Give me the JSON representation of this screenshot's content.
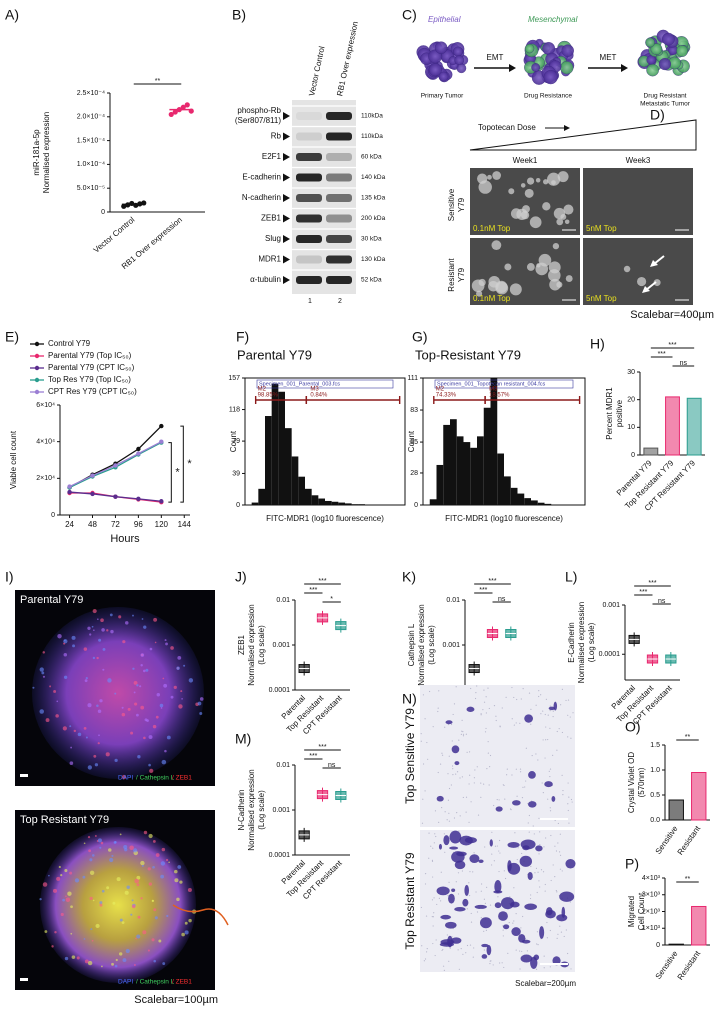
{
  "chart_data": [
    {
      "type": "dot",
      "panel_label": "A)",
      "ylabel": [
        "miR-181a-5p",
        "Normalised expression"
      ],
      "categories": [
        "Vector Control",
        "RB1 Over expression"
      ],
      "values": [
        1.6e-05,
        0.000215
      ],
      "points": [
        [
          1.2e-05,
          1.5e-05,
          1.8e-05,
          1.4e-05,
          1.7e-05,
          1.9e-05
        ],
        [
          0.000205,
          0.00021,
          0.000215,
          0.00022,
          0.000225,
          0.000212
        ]
      ],
      "colors": [
        "#111111",
        "#e8286e"
      ],
      "ylim": [
        0,
        0.00025
      ],
      "yticks": [
        0,
        {
          "value": 5e-05,
          "label": "5.0×10⁻⁵"
        },
        {
          "value": 0.0001,
          "label": "1.0×10⁻⁴"
        },
        {
          "value": 0.00015,
          "label": "1.5×10⁻⁴"
        },
        {
          "value": 0.0002,
          "label": "2.0×10⁻⁴"
        },
        {
          "value": 0.00025,
          "label": "2.5×10⁻⁴"
        }
      ],
      "annotations": [
        "**"
      ]
    },
    {
      "type": "line",
      "panel_label": "E)",
      "xlabel": "Hours",
      "ylabel": [
        "Viable cell count"
      ],
      "x": [
        24,
        48,
        72,
        96,
        120
      ],
      "series": [
        {
          "name": "Control Y79",
          "color": "#111111",
          "values": [
            15000,
            22000,
            28000,
            36000,
            48500
          ]
        },
        {
          "name": "Parental Y79 (Top IC₅₀)",
          "color": "#e8286e",
          "values": [
            12000,
            12000,
            10000,
            8500,
            7000
          ]
        },
        {
          "name": "Parental Y79 (CPT IC₅₀)",
          "color": "#5b2d8e",
          "values": [
            12500,
            11500,
            10000,
            8800,
            7500
          ]
        },
        {
          "name": "Top Res Y79 (Top IC₅₀)",
          "color": "#2a9d8f",
          "values": [
            15000,
            21000,
            26000,
            33000,
            39500
          ]
        },
        {
          "name": "CPT Res Y79 (CPT IC₅₀)",
          "color": "#9b7fd4",
          "values": [
            15500,
            21500,
            27000,
            33500,
            40000
          ]
        }
      ],
      "xlim": [
        14,
        150
      ],
      "xticks": [
        24,
        48,
        72,
        96,
        120,
        144
      ],
      "ylim": [
        0,
        60000
      ],
      "yticks": [
        0,
        {
          "value": 20000,
          "label": "2×10⁴"
        },
        {
          "value": 40000,
          "label": "4×10⁴"
        },
        {
          "value": 60000,
          "label": "6×10⁴"
        }
      ],
      "annotations": [
        "*",
        "*"
      ]
    },
    {
      "type": "histogram",
      "panel_label": "F)",
      "title": "Parental Y79",
      "specimen": "Specimen_001_Parental_003.fcs",
      "xlabel": "FITC-MDR1 (log10 fluorescence)",
      "ylabel": [
        "Count"
      ],
      "bins": [
        -1,
        -0.75,
        -0.5,
        -0.25,
        0,
        0.25,
        0.5,
        0.75,
        1,
        1.25,
        1.5,
        1.75,
        2,
        2.25,
        2.5,
        2.75,
        3,
        3.25,
        3.5,
        3.75,
        4,
        4.25,
        4.5,
        4.75,
        5
      ],
      "counts": [
        0,
        3,
        20,
        110,
        150,
        140,
        95,
        60,
        35,
        20,
        12,
        8,
        5,
        4,
        3,
        2,
        1,
        1,
        0,
        0,
        0,
        0,
        0,
        0
      ],
      "xlim": [
        -1,
        5
      ],
      "ylim": [
        0,
        157
      ],
      "yticks": [
        0,
        39,
        79,
        118,
        157
      ],
      "color": "#111111",
      "gate_names": [
        "M2",
        "M3"
      ],
      "gate_values": [
        98.85,
        0.84
      ],
      "gate_value_labels": [
        "98.85%",
        "0.84%"
      ]
    },
    {
      "type": "histogram",
      "panel_label": "G)",
      "title": "Top-Resistant Y79",
      "specimen": "Specimen_001_Topotecan resistant_004.fcs",
      "xlabel": "FITC-MDR1 (log10 fluorescence)",
      "ylabel": [
        "Count"
      ],
      "bins": [
        -1,
        -0.75,
        -0.5,
        -0.25,
        0,
        0.25,
        0.5,
        0.75,
        1,
        1.25,
        1.5,
        1.75,
        2,
        2.25,
        2.5,
        2.75,
        3,
        3.25,
        3.5,
        3.75,
        4,
        4.25,
        4.5,
        4.75,
        5
      ],
      "counts": [
        0,
        5,
        35,
        70,
        75,
        60,
        55,
        50,
        60,
        85,
        111,
        45,
        25,
        15,
        10,
        6,
        4,
        2,
        1,
        0,
        0,
        0,
        0,
        0
      ],
      "xlim": [
        -1,
        5
      ],
      "ylim": [
        0,
        111
      ],
      "yticks": [
        0,
        28,
        55,
        83,
        111
      ],
      "color": "#111111",
      "gate_names": [
        "M2",
        "M3"
      ],
      "gate_values": [
        74.33,
        18.57
      ],
      "gate_value_labels": [
        "74.33%",
        "18.57%"
      ]
    },
    {
      "type": "bar",
      "panel_label": "H)",
      "ylabel": [
        "Percent MDR1",
        "positive"
      ],
      "categories": [
        "Parental Y79",
        "Top Resistant Y79",
        "CPT Resistant Y79"
      ],
      "values": [
        2.5,
        21,
        20.5
      ],
      "colors": [
        "#555555",
        "#e8286e",
        "#2a9d8f"
      ],
      "ylim": [
        0,
        30
      ],
      "yticks": [
        0,
        10,
        20,
        30
      ],
      "annotations": [
        "***",
        "***",
        "ns"
      ]
    },
    {
      "type": "box",
      "panel_label": "J)",
      "ylabel": [
        "ZEB1",
        "Normalised expression",
        "(Log scale)"
      ],
      "log": true,
      "categories": [
        "Parental",
        "Top Resistant",
        "CPT Resistant"
      ],
      "values": [
        0.0003,
        0.004,
        0.0027
      ],
      "colors": [
        "#111111",
        "#e8286e",
        "#2a9d8f"
      ],
      "ylim": [
        0.0001,
        0.01
      ],
      "yticks": [
        0.0001,
        0.001,
        0.01
      ],
      "annotations": [
        "***",
        "***",
        "*"
      ]
    },
    {
      "type": "box",
      "panel_label": "K)",
      "ylabel": [
        "Cathepsin  L",
        "Normalised expression",
        "(Log scale)"
      ],
      "log": true,
      "categories": [
        "Parental",
        "Top Resistant",
        "CPT Resistant"
      ],
      "values": [
        0.0003,
        0.0018,
        0.0018
      ],
      "colors": [
        "#111111",
        "#e8286e",
        "#2a9d8f"
      ],
      "ylim": [
        0.0001,
        0.01
      ],
      "yticks": [
        0.0001,
        0.001,
        0.01
      ],
      "annotations": [
        "***",
        "***",
        "ns"
      ]
    },
    {
      "type": "box",
      "panel_label": "L)",
      "ylabel": [
        "E-Cadherin",
        "Normalised expression",
        "(Log scale)"
      ],
      "log": true,
      "categories": [
        "Parental",
        "Top Resistant",
        "CPT Resistant"
      ],
      "values": [
        0.0002,
        8e-05,
        8e-05
      ],
      "colors": [
        "#111111",
        "#e8286e",
        "#2a9d8f"
      ],
      "ylim": [
        3e-05,
        0.001
      ],
      "yticks": [
        0.0001,
        0.001
      ],
      "annotations": [
        "***",
        "***",
        "ns"
      ]
    },
    {
      "type": "box",
      "panel_label": "M)",
      "ylabel": [
        "N-Cadherin",
        "Normalised expression",
        "(Log scale)"
      ],
      "log": true,
      "categories": [
        "Parental",
        "Top Resistant",
        "CPT Resistant"
      ],
      "values": [
        0.00028,
        0.0022,
        0.0021
      ],
      "colors": [
        "#111111",
        "#e8286e",
        "#2a9d8f"
      ],
      "ylim": [
        0.0001,
        0.01
      ],
      "yticks": [
        0.0001,
        0.001,
        0.01
      ],
      "annotations": [
        "***",
        "***",
        "ns"
      ]
    },
    {
      "type": "bar",
      "panel_label": "O)",
      "ylabel": [
        "Crystal Violet OD",
        "(570nm)"
      ],
      "categories": [
        "Sensitive",
        "Resistant"
      ],
      "values": [
        0.4,
        0.95
      ],
      "colors": [
        "#111111",
        "#e8286e"
      ],
      "ylim": [
        0,
        1.5
      ],
      "yticks": [
        {
          "value": 0,
          "label": "0.0"
        },
        {
          "value": 0.5,
          "label": "0.5"
        },
        {
          "value": 1,
          "label": "1.0"
        },
        {
          "value": 1.5,
          "label": "1.5"
        }
      ],
      "annotations": [
        "**"
      ]
    },
    {
      "type": "bar",
      "panel_label": "P)",
      "ylabel": [
        "Migrated",
        "Cell Count"
      ],
      "categories": [
        "Sensitive",
        "Resistant"
      ],
      "values": [
        50,
        2300
      ],
      "colors": [
        "#111111",
        "#e8286e"
      ],
      "ylim": [
        0,
        4000
      ],
      "yticks": [
        0,
        {
          "value": 1000,
          "label": "1×10³"
        },
        {
          "value": 2000,
          "label": "2×10³"
        },
        {
          "value": 3000,
          "label": "3×10³"
        },
        {
          "value": 4000,
          "label": "4×10³"
        }
      ],
      "annotations": [
        "**"
      ]
    }
  ],
  "blot": {
    "panel_label": "B)",
    "columns": [
      "Vector Control",
      "RB1 Over expression"
    ],
    "lanes": [
      "1",
      "2"
    ],
    "rows": [
      {
        "protein": [
          "phospho-Rb",
          "(Ser807/811)"
        ],
        "size": "110kDa"
      },
      {
        "protein": [
          "Rb"
        ],
        "size": "110kDa"
      },
      {
        "protein": [
          "E2F1"
        ],
        "size": "60 kDa"
      },
      {
        "protein": [
          "E-cadherin"
        ],
        "size": "140 kDa"
      },
      {
        "protein": [
          "N-cadherin"
        ],
        "size": "135 kDa"
      },
      {
        "protein": [
          "ZEB1"
        ],
        "size": "200 kDa"
      },
      {
        "protein": [
          "Slug"
        ],
        "size": "30 kDa"
      },
      {
        "protein": [
          "MDR1"
        ],
        "size": "130 kDa"
      },
      {
        "protein": [
          "α-tubulin"
        ],
        "size": "52 kDa"
      }
    ]
  },
  "diagram": {
    "panel_label": "C)",
    "stages": [
      {
        "title": "Epithelial",
        "caption": [
          "Primary Tumor"
        ]
      },
      {
        "title": "Mesenchymal",
        "caption": [
          "Drug Resistance"
        ]
      },
      {
        "caption": [
          "Drug Resistant",
          "Metastatic Tumor"
        ]
      }
    ],
    "arrows": [
      "EMT",
      "MET"
    ]
  },
  "micrographs": {
    "panel_label": "D)",
    "dose_label": "Topotecan Dose",
    "columns": [
      "Week1",
      "Week3"
    ],
    "rows": [
      [
        "Sensitive",
        "Y79"
      ],
      [
        "Resistant",
        "Y79"
      ]
    ],
    "doses": [
      [
        "0.1nM Top",
        "5nM Top"
      ],
      [
        "0.1nM Top",
        "5nM Top"
      ]
    ],
    "scalebar": "Scalebar=400µm"
  },
  "spheroids": {
    "panel_label": "I)",
    "images": [
      "Parental Y79",
      "Top Resistant Y79"
    ],
    "stain": [
      "DAPI",
      "/ Cathepsin L",
      "/ ZEB1"
    ],
    "scalebar": "Scalebar=100µm"
  },
  "migration": {
    "panel_label": "N)",
    "rows": [
      "Top Sensitive Y79",
      "Top Resistant Y79"
    ],
    "scalebar": "Scalebar=200µm"
  }
}
